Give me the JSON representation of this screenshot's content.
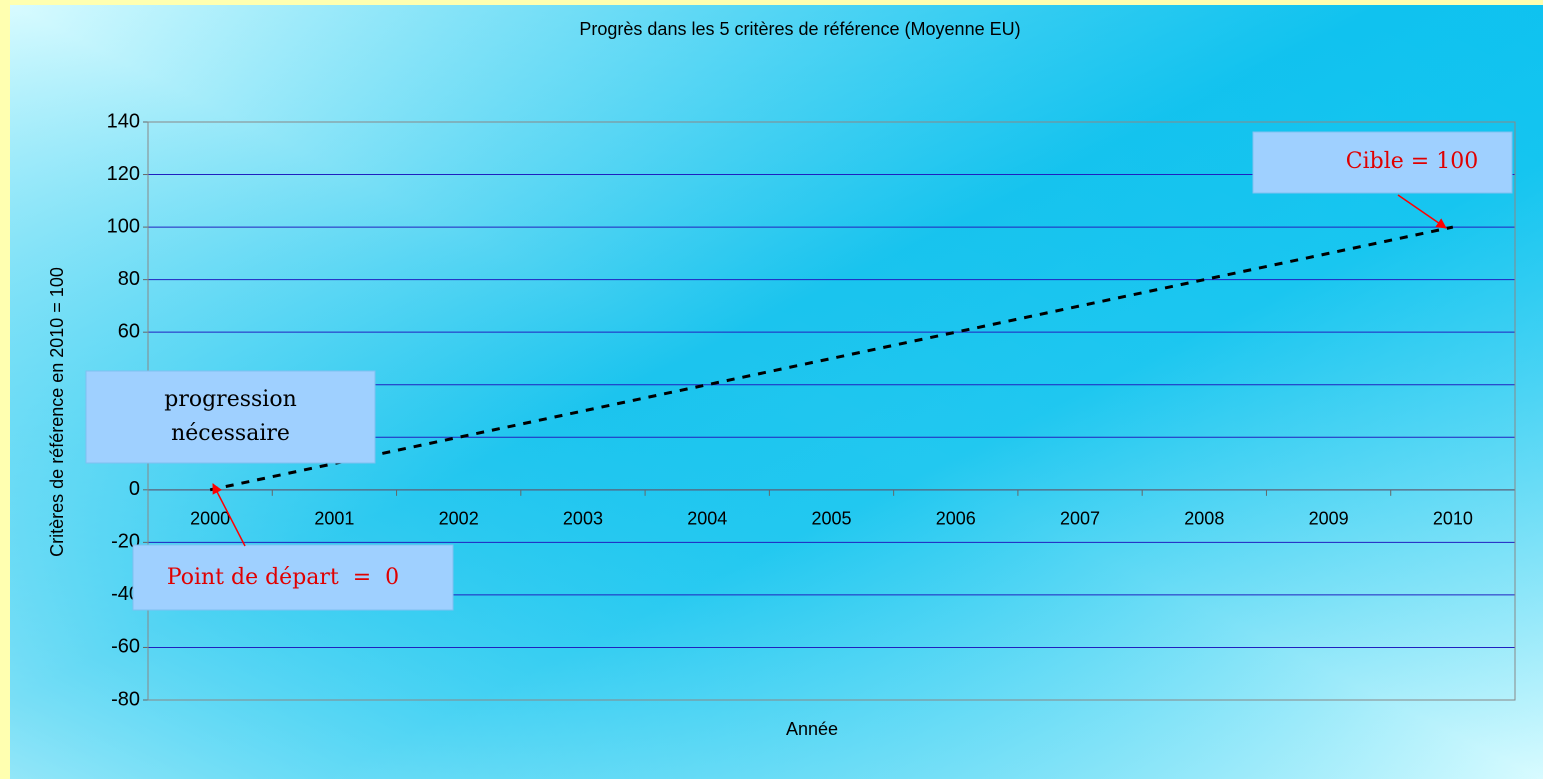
{
  "chart_data": {
    "type": "line",
    "title": "Progrès dans les 5 critères de référence (Moyenne EU)",
    "x_label": "Année",
    "y_label": "Critères de référence en 2010 = 100",
    "categories": [
      "2000",
      "2001",
      "2002",
      "2003",
      "2004",
      "2005",
      "2006",
      "2007",
      "2008",
      "2009",
      "2010"
    ],
    "values": [
      0,
      10,
      20,
      30,
      40,
      50,
      60,
      70,
      80,
      90,
      100
    ],
    "color": "#000000",
    "line_style": "dashed",
    "ylim": [
      -80,
      140
    ],
    "yticks": [
      -80,
      -60,
      -40,
      -20,
      0,
      20,
      40,
      60,
      80,
      100,
      120,
      140
    ],
    "grid": true,
    "annotations": [
      "progression nécessaire",
      "Point de départ  =  0",
      "Cible = 100"
    ]
  }
}
